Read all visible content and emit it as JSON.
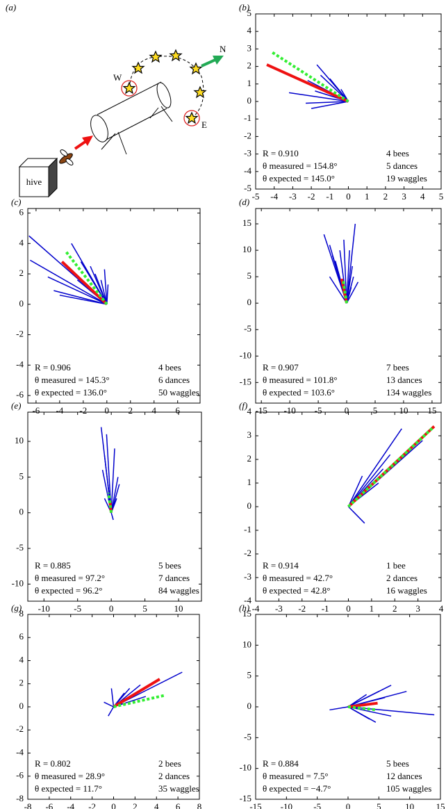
{
  "diagram": {
    "label": "(a)",
    "hive": "hive",
    "north": "N",
    "west": "W",
    "east": "E"
  },
  "chart_data": [
    {
      "type": "vector",
      "label": "(b)",
      "xlim": [
        -5,
        5
      ],
      "ylim": [
        -5,
        5
      ],
      "xticks": [
        -5,
        -4,
        -3,
        -2,
        -1,
        0,
        1,
        2,
        3,
        4,
        5
      ],
      "yticks": [
        -5,
        -4,
        -3,
        -2,
        -1,
        0,
        1,
        2,
        3,
        4,
        5
      ],
      "vectors": {
        "color": "#0000cc",
        "x": [
          -1.7,
          -1.5,
          -2.2,
          -1.8,
          -3.2,
          -2.0,
          -2.3,
          -1.0,
          -0.8,
          -0.4
        ],
        "y": [
          2.1,
          1.5,
          1.2,
          0.6,
          0.5,
          -0.4,
          -0.1,
          1.3,
          1.0,
          0.7
        ]
      },
      "measured": {
        "color": "#ee1111",
        "x": -4.4,
        "y": 2.1
      },
      "expected": {
        "color": "#33ee33",
        "x": -4.1,
        "y": 2.8
      },
      "annotations": [
        "R = 0.910",
        "θ measured = 154.8°",
        "θ expected = 145.0°",
        "4 bees",
        "5 dances",
        "19 waggles"
      ]
    },
    {
      "type": "vector",
      "label": "(c)",
      "xlim": [
        -6.7,
        7.9
      ],
      "ylim": [
        -6.5,
        6.3
      ],
      "xticks": [
        -6,
        -4,
        -2,
        0,
        2,
        4,
        6
      ],
      "yticks": [
        -6,
        -4,
        -2,
        0,
        2,
        4,
        6
      ],
      "vectors": {
        "color": "#0000cc",
        "x": [
          -6.6,
          -6.5,
          -5.0,
          -4.0,
          -3.0,
          -2.2,
          -1.4,
          -1.0,
          -0.5,
          -0.2,
          -4.5,
          -1.6,
          0.1,
          -2.5
        ],
        "y": [
          4.5,
          2.9,
          1.8,
          0.6,
          4.0,
          2.8,
          2.5,
          2.0,
          1.6,
          2.3,
          0.9,
          1.2,
          1.3,
          1.6
        ]
      },
      "measured": {
        "color": "#ee1111",
        "x": -3.8,
        "y": 2.8
      },
      "expected": {
        "color": "#33ee33",
        "x": -3.5,
        "y": 3.5
      },
      "annotations": [
        "R = 0.906",
        "θ measured = 145.3°",
        "θ expected = 136.0°",
        "4 bees",
        "6 dances",
        "50 waggles"
      ]
    },
    {
      "type": "vector",
      "label": "(d)",
      "xlim": [
        -16,
        16.6
      ],
      "ylim": [
        -18.9,
        17.9
      ],
      "xticks": [
        -15,
        -10,
        -5,
        0,
        5,
        10,
        15
      ],
      "yticks": [
        -15,
        -10,
        -5,
        0,
        5,
        10,
        15
      ],
      "vectors": {
        "color": "#0000cc",
        "x": [
          -4,
          -3,
          -2.5,
          -2,
          -1.2,
          -0.5,
          0.5,
          1,
          1.5,
          1.2,
          -1.5,
          -3,
          0.8,
          2
        ],
        "y": [
          13,
          11,
          9,
          8,
          10,
          12,
          10,
          7,
          15,
          5,
          6,
          5,
          3,
          4
        ]
      },
      "measured": {
        "color": "#ee1111",
        "x": -0.9,
        "y": 4.6
      },
      "expected": {
        "color": "#33ee33",
        "x": -0.6,
        "y": 4.2
      },
      "annotations": [
        "R = 0.907",
        "θ measured = 101.8°",
        "θ expected = 103.6°",
        "7 bees",
        "13 dances",
        "134 waggles"
      ]
    },
    {
      "type": "vector",
      "label": "(e)",
      "xlim": [
        -12.4,
        13.4
      ],
      "ylim": [
        -12.4,
        14.1
      ],
      "xticks": [
        -10,
        -5,
        0,
        5,
        10
      ],
      "yticks": [
        -10,
        -5,
        0,
        5,
        10
      ],
      "vectors": {
        "color": "#0000cc",
        "x": [
          -1.5,
          -0.7,
          -1,
          -1.3,
          0.5,
          1,
          1.2,
          -0.5,
          0.3,
          0.8,
          -1
        ],
        "y": [
          12,
          11,
          8,
          6,
          9,
          5,
          4,
          4,
          -1,
          2,
          2
        ]
      },
      "measured": {
        "color": "#ee1111",
        "x": -0.2,
        "y": 1.6
      },
      "expected": {
        "color": "#33ee33",
        "x": -0.4,
        "y": 2.8
      },
      "annotations": [
        "R = 0.885",
        "θ measured = 97.2°",
        "θ expected = 96.2°",
        "5 bees",
        "7 dances",
        "84 waggles"
      ]
    },
    {
      "type": "vector",
      "label": "(f)",
      "xlim": [
        -4,
        4
      ],
      "ylim": [
        -4,
        4
      ],
      "xticks": [
        -4,
        -3,
        -2,
        -1,
        0,
        1,
        2,
        3,
        4
      ],
      "yticks": [
        -4,
        -3,
        -2,
        -1,
        0,
        1,
        2,
        3,
        4
      ],
      "vectors": {
        "color": "#0000cc",
        "x": [
          2.3,
          1.8,
          1.5,
          0.6,
          1.3,
          0.7,
          0.6,
          3.2
        ],
        "y": [
          3.3,
          2.2,
          1.6,
          1.3,
          1.0,
          -0.7,
          0.6,
          2.8
        ]
      },
      "measured": {
        "color": "#ee1111",
        "x": 3.7,
        "y": 3.4
      },
      "expected": {
        "color": "#33ee33",
        "x": 3.65,
        "y": 3.35
      },
      "annotations": [
        "R = 0.914",
        "θ measured = 42.7°",
        "θ expected = 42.8°",
        "1 bee",
        "2 dances",
        "16 waggles"
      ]
    },
    {
      "type": "vector",
      "label": "(g)",
      "xlim": [
        -8,
        8
      ],
      "ylim": [
        -8,
        8
      ],
      "xticks": [
        -8,
        -6,
        -4,
        -2,
        0,
        2,
        4,
        6,
        8
      ],
      "yticks": [
        -8,
        -6,
        -4,
        -2,
        0,
        2,
        4,
        6,
        8
      ],
      "vectors": {
        "color": "#0000cc",
        "x": [
          6.4,
          2.5,
          1.5,
          -0.2,
          -0.5,
          -0.9,
          3.0,
          1.0,
          0.8
        ],
        "y": [
          3.0,
          1.9,
          1.6,
          1.6,
          -0.8,
          0.4,
          0.9,
          1.2,
          0.3
        ]
      },
      "measured": {
        "color": "#ee1111",
        "x": 4.3,
        "y": 2.4
      },
      "expected": {
        "color": "#33ee33",
        "x": 4.8,
        "y": 1.0
      },
      "annotations": [
        "R = 0.802",
        "θ measured = 28.9°",
        "θ expected = 11.7°",
        "2 bees",
        "2 dances",
        "35 waggles"
      ]
    },
    {
      "type": "vector",
      "label": "(h)",
      "xlim": [
        -15,
        15
      ],
      "ylim": [
        -15,
        15
      ],
      "xticks": [
        -15,
        -10,
        -5,
        0,
        5,
        10,
        15
      ],
      "yticks": [
        -15,
        -10,
        -5,
        0,
        5,
        10,
        15
      ],
      "vectors": {
        "color": "#0000cc",
        "x": [
          14,
          9.5,
          7,
          5,
          6,
          3,
          3.5,
          7,
          -3,
          2,
          4.5
        ],
        "y": [
          -1.3,
          2.5,
          3.5,
          2.5,
          1.5,
          2,
          -2.0,
          -1.5,
          -0.5,
          1.0,
          -2.5
        ]
      },
      "measured": {
        "color": "#ee1111",
        "x": 4.8,
        "y": 0.6
      },
      "expected": {
        "color": "#33ee33",
        "x": 4.7,
        "y": -0.5
      },
      "annotations": [
        "R = 0.884",
        "θ measured = 7.5°",
        "θ expected = −4.7°",
        "5 bees",
        "12 dances",
        "105 waggles"
      ]
    }
  ]
}
